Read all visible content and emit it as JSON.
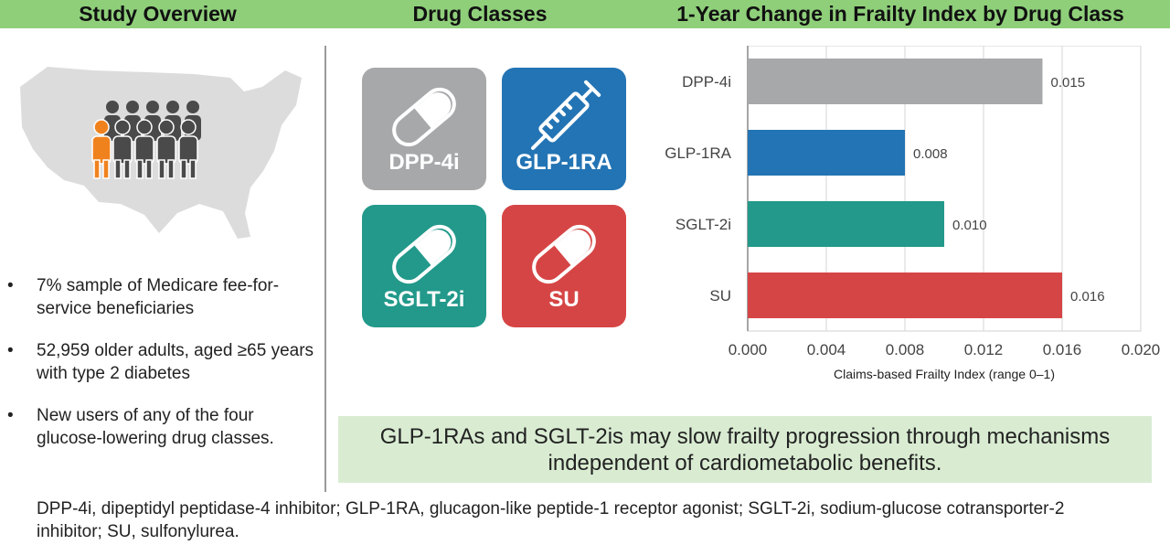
{
  "headers": {
    "study_overview": "Study Overview",
    "drug_classes": "Drug Classes",
    "chart_title": "1-Year Change in Frailty Index by Drug Class"
  },
  "bullets": [
    "7% sample of Medicare fee-for-service beneficiaries",
    "52,959 older adults, aged ≥65 years with type 2 diabetes",
    "New users of any of the four glucose-lowering drug classes."
  ],
  "bullet_symbol": "•",
  "drug_cards": [
    {
      "label": "DPP-4i",
      "color": "#a7a8aa",
      "icon": "capsule-icon"
    },
    {
      "label": "GLP-1RA",
      "color": "#2374b4",
      "icon": "syringe-icon"
    },
    {
      "label": "SGLT-2i",
      "color": "#22998a",
      "icon": "capsule-icon"
    },
    {
      "label": "SU",
      "color": "#d64545",
      "icon": "capsule-icon"
    }
  ],
  "colors": {
    "header_bar": "#8fcf7a",
    "conclusion_bg": "#d9ecd2",
    "map": "#dcdcdc",
    "person_dark": "#4a4a4a",
    "person_highlight": "#f0821e"
  },
  "conclusion": "GLP-1RAs and SGLT-2is may slow frailty progression through mechanisms independent of cardiometabolic benefits.",
  "footnote": "DPP-4i, dipeptidyl peptidase-4 inhibitor; GLP-1RA, glucagon-like peptide-1 receptor agonist; SGLT-2i, sodium-glucose cotransporter-2 inhibitor; SU, sulfonylurea.",
  "chart_data": {
    "type": "bar",
    "orientation": "horizontal",
    "title": "1-Year Change in Frailty Index by Drug Class",
    "xlabel": "Claims-based Frailty Index (range 0–1)",
    "ylabel": "",
    "categories": [
      "DPP-4i",
      "GLP-1RA",
      "SGLT-2i",
      "SU"
    ],
    "values": [
      0.015,
      0.008,
      0.01,
      0.016
    ],
    "value_labels": [
      "0.015",
      "0.008",
      "0.010",
      "0.016"
    ],
    "colors": [
      "#a7a8aa",
      "#2374b4",
      "#22998a",
      "#d64545"
    ],
    "xlim": [
      0,
      0.02
    ],
    "xticks": [
      0.0,
      0.004,
      0.008,
      0.012,
      0.016,
      0.02
    ],
    "xtick_labels": [
      "0.000",
      "0.004",
      "0.008",
      "0.012",
      "0.016",
      "0.020"
    ],
    "grid": true
  }
}
